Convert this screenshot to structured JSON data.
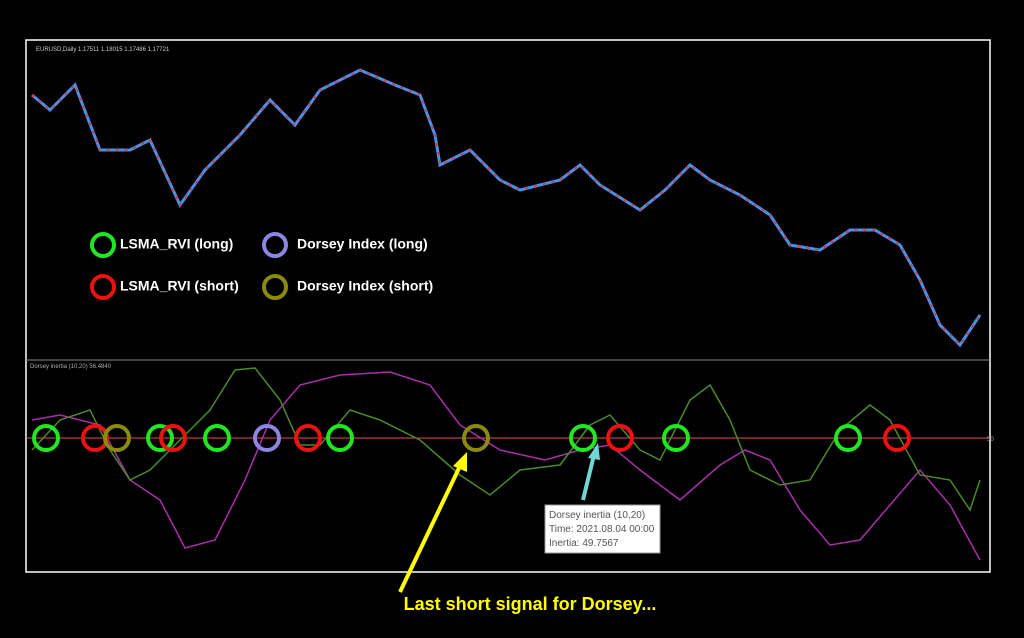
{
  "header": {
    "symbol": "EURUSD,Daily  1.17511 1.18015 1.17486 1.17721"
  },
  "indicator": {
    "title": "Dorsey inertia (10,20) 56.4840",
    "level": "50"
  },
  "legend": [
    {
      "label": "LSMA_RVI (long)"
    },
    {
      "label": "Dorsey Index (long)"
    },
    {
      "label": "LSMA_RVI (short)"
    },
    {
      "label": "Dorsey Index (short)"
    }
  ],
  "tooltip": {
    "lines": [
      "Dorsey inertia (10,20)",
      "Time: 2021.08.04 00:00",
      "Inertia: 49.7567"
    ]
  },
  "annotation": "Last short signal for Dorsey..."
}
